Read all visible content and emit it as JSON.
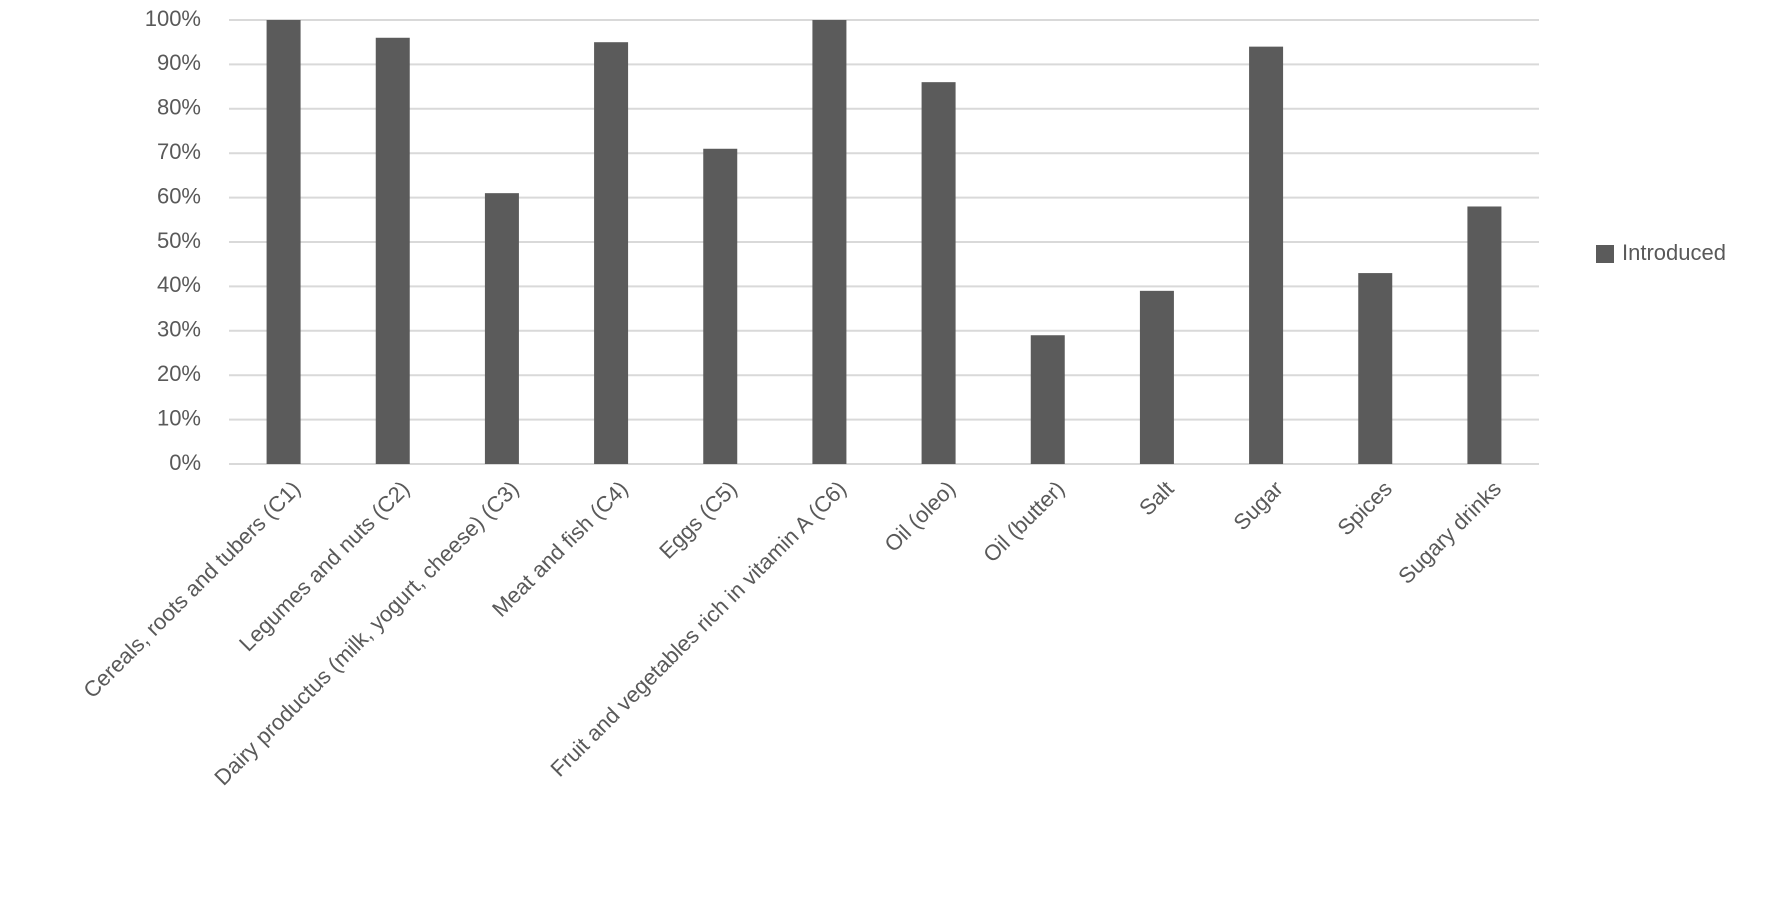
{
  "chart_data": {
    "type": "bar",
    "categories": [
      "Cereals, roots and tubers (C1)",
      "Legumes and nuts (C2)",
      "Dairy productus (milk, yogurt, cheese) (C3)",
      "Meat and fish (C4)",
      "Eggs (C5)",
      "Fruit and vegetables rich in vitamin A (C6)",
      "Oil (oleo)",
      "Oil (butter)",
      "Salt",
      "Sugar",
      "Spices",
      "Sugary drinks"
    ],
    "series": [
      {
        "name": "Introduced",
        "color": "#5b5b5b",
        "values": [
          100,
          96,
          61,
          95,
          71,
          100,
          86,
          29,
          39,
          94,
          43,
          58
        ]
      }
    ],
    "ylim": [
      0,
      100
    ],
    "yticks": [
      {
        "value": 0,
        "label": "0%"
      },
      {
        "value": 10,
        "label": "10%"
      },
      {
        "value": 20,
        "label": "20%"
      },
      {
        "value": 30,
        "label": "30%"
      },
      {
        "value": 40,
        "label": "40%"
      },
      {
        "value": 50,
        "label": "50%"
      },
      {
        "value": 60,
        "label": "60%"
      },
      {
        "value": 70,
        "label": "70%"
      },
      {
        "value": 80,
        "label": "80%"
      },
      {
        "value": 90,
        "label": "90%"
      },
      {
        "value": 100,
        "label": "100%"
      }
    ],
    "grid": true,
    "legend": "right"
  }
}
